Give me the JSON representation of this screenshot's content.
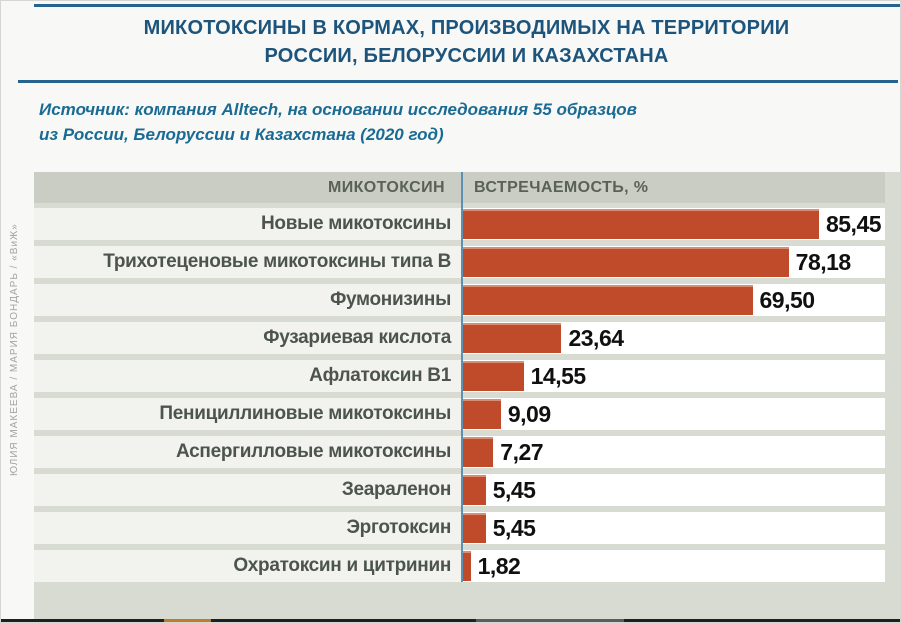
{
  "title": {
    "line1": "МИКОТОКСИНЫ В КОРМАХ, ПРОИЗВОДИМЫХ НА ТЕРРИТОРИИ",
    "line2": "РОССИИ, БЕЛОРУССИИ И КАЗАХСТАНА"
  },
  "source": {
    "line1": "Источник: компания Alltech, на основании исследования 55 образцов",
    "line2": "из России, Белоруссии и Казахстана (2020 год)"
  },
  "credit": "ЮЛИЯ МАКЕЕВА / МАРИЯ БОНДАРЬ / «ВиЖ»",
  "table_header": {
    "mycotoxin": "МИКОТОКСИН",
    "occurrence": "ВСТРЕЧАЕМОСТЬ, %"
  },
  "chart_data": {
    "type": "bar",
    "orientation": "horizontal",
    "title": "Микотоксины в кормах, производимых на территории России, Белоруссии и Казахстана",
    "xlabel": "Встречаемость, %",
    "ylabel": "Микотоксин",
    "categories": [
      "Новые микотоксины",
      "Трихотеценовые микотоксины типа В",
      "Фумонизины",
      "Фузариевая кислота",
      "Афлатоксин В1",
      "Пенициллиновые микотоксины",
      "Аспергилловые микотоксины",
      "Зеараленон",
      "Эрготоксин",
      "Охратоксин и цитринин"
    ],
    "values": [
      85.45,
      78.18,
      69.5,
      23.64,
      14.55,
      9.09,
      7.27,
      5.45,
      5.45,
      1.82
    ],
    "value_labels": [
      "85,45",
      "78,18",
      "69,50",
      "23,64",
      "14,55",
      "9,09",
      "7,27",
      "5,45",
      "5,45",
      "1,82"
    ],
    "xlim": [
      0,
      101.3
    ],
    "grid": false,
    "legend": false,
    "bar_color": "#c04b2a"
  },
  "colors": {
    "title_blue": "#1d547c",
    "rule_blue": "#27638f",
    "source_blue": "#1a6b94",
    "bar": "#c04b2a",
    "header_band": "#c9cdc4",
    "row_label_bg": "#f2f3ee",
    "chart_bg": "#d8dbd2",
    "separator_line": "#5d91b3"
  }
}
